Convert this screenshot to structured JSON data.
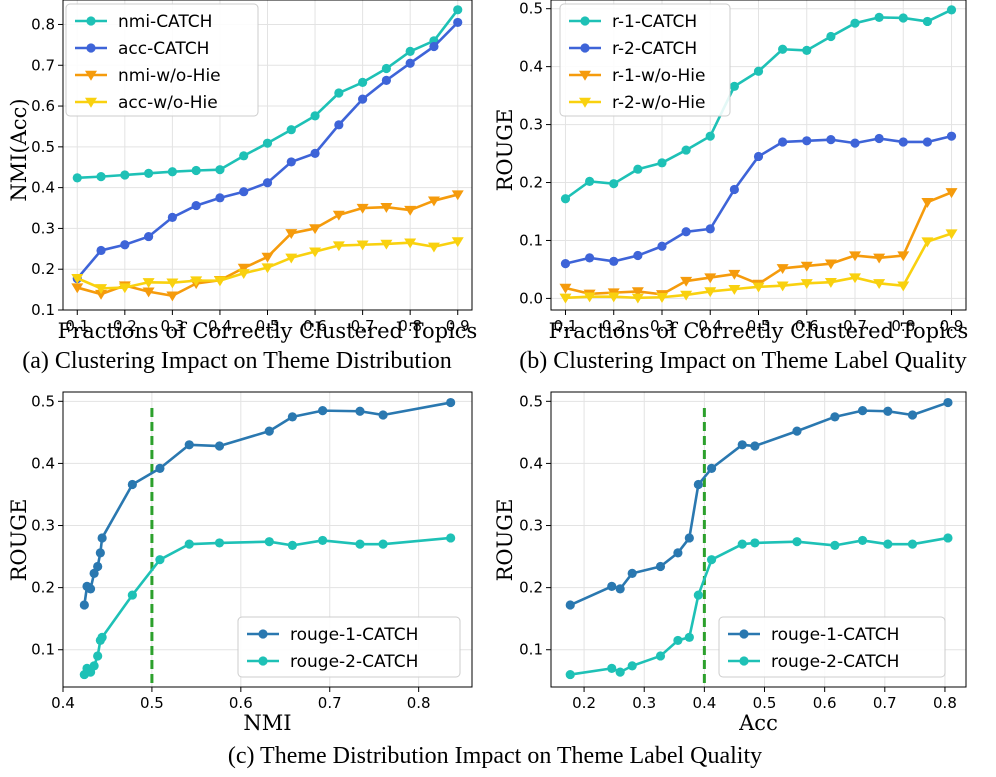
{
  "captions": {
    "a": "(a) Clustering Impact on Theme Distribution",
    "b": "(b) Clustering Impact on Theme Label Quality",
    "c": "(c) Theme Distribution Impact on Theme Label Quality"
  },
  "chart_data": [
    {
      "id": "a",
      "type": "line",
      "xlabel": "Fractions of Correctly Clustered Topics",
      "ylabel": "NMI(Acc)",
      "xlim": [
        0.07,
        0.93
      ],
      "ylim": [
        0.1,
        0.86
      ],
      "xticks": [
        0.1,
        0.2,
        0.3,
        0.4,
        0.5,
        0.6,
        0.7,
        0.8,
        0.9
      ],
      "yticks": [
        0.1,
        0.2,
        0.3,
        0.4,
        0.5,
        0.6,
        0.7,
        0.8
      ],
      "legend": "top-left",
      "x": [
        0.1,
        0.15,
        0.2,
        0.25,
        0.3,
        0.35,
        0.4,
        0.45,
        0.5,
        0.55,
        0.6,
        0.65,
        0.7,
        0.75,
        0.8,
        0.85,
        0.9
      ],
      "series": [
        {
          "name": "nmi-CATCH",
          "color": "#1ec1b6",
          "marker": "circle",
          "values": [
            0.424,
            0.427,
            0.431,
            0.435,
            0.439,
            0.442,
            0.444,
            0.478,
            0.509,
            0.542,
            0.576,
            0.632,
            0.658,
            0.692,
            0.734,
            0.76,
            0.836
          ]
        },
        {
          "name": "acc-CATCH",
          "color": "#3e64d8",
          "marker": "circle",
          "values": [
            0.177,
            0.246,
            0.26,
            0.28,
            0.327,
            0.356,
            0.375,
            0.39,
            0.412,
            0.463,
            0.484,
            0.554,
            0.617,
            0.663,
            0.705,
            0.746,
            0.805
          ]
        },
        {
          "name": "nmi-w/o-Hie",
          "color": "#f59b0c",
          "marker": "triangle",
          "values": [
            0.155,
            0.139,
            0.16,
            0.145,
            0.135,
            0.165,
            0.173,
            0.203,
            0.23,
            0.288,
            0.3,
            0.333,
            0.35,
            0.352,
            0.345,
            0.368,
            0.383
          ]
        },
        {
          "name": "acc-w/o-Hie",
          "color": "#f9d10f",
          "marker": "triangle",
          "values": [
            0.178,
            0.153,
            0.155,
            0.168,
            0.167,
            0.172,
            0.172,
            0.19,
            0.204,
            0.228,
            0.243,
            0.258,
            0.26,
            0.262,
            0.265,
            0.255,
            0.268
          ]
        }
      ]
    },
    {
      "id": "b",
      "type": "line",
      "xlabel": "Fractions of Correctly Clustered Topics",
      "ylabel": "ROUGE",
      "xlim": [
        0.07,
        0.93
      ],
      "ylim": [
        -0.02,
        0.515
      ],
      "xticks": [
        0.1,
        0.2,
        0.3,
        0.4,
        0.5,
        0.6,
        0.7,
        0.8,
        0.9
      ],
      "yticks": [
        0.0,
        0.1,
        0.2,
        0.3,
        0.4,
        0.5
      ],
      "legend": "top-left",
      "x": [
        0.1,
        0.15,
        0.2,
        0.25,
        0.3,
        0.35,
        0.4,
        0.45,
        0.5,
        0.55,
        0.6,
        0.65,
        0.7,
        0.75,
        0.8,
        0.85,
        0.9
      ],
      "series": [
        {
          "name": "r-1-CATCH",
          "color": "#1ec1b6",
          "marker": "circle",
          "values": [
            0.172,
            0.202,
            0.198,
            0.223,
            0.234,
            0.256,
            0.28,
            0.366,
            0.392,
            0.43,
            0.428,
            0.452,
            0.475,
            0.485,
            0.484,
            0.478,
            0.498
          ]
        },
        {
          "name": "r-2-CATCH",
          "color": "#3e64d8",
          "marker": "circle",
          "values": [
            0.06,
            0.07,
            0.064,
            0.074,
            0.09,
            0.115,
            0.12,
            0.188,
            0.245,
            0.27,
            0.272,
            0.274,
            0.268,
            0.276,
            0.27,
            0.27,
            0.28
          ]
        },
        {
          "name": "r-1-w/o-Hie",
          "color": "#f59b0c",
          "marker": "triangle",
          "values": [
            0.018,
            0.008,
            0.01,
            0.012,
            0.007,
            0.03,
            0.036,
            0.042,
            0.025,
            0.052,
            0.056,
            0.06,
            0.074,
            0.07,
            0.074,
            0.166,
            0.183
          ]
        },
        {
          "name": "r-2-w/o-Hie",
          "color": "#f9d10f",
          "marker": "triangle",
          "values": [
            0.001,
            0.003,
            0.003,
            0.001,
            0.002,
            0.006,
            0.012,
            0.016,
            0.02,
            0.022,
            0.026,
            0.028,
            0.036,
            0.026,
            0.022,
            0.098,
            0.112
          ]
        }
      ]
    },
    {
      "id": "c1",
      "type": "line",
      "xlabel": "NMI",
      "ylabel": "ROUGE",
      "xlim": [
        0.4,
        0.86
      ],
      "ylim": [
        0.04,
        0.515
      ],
      "xticks": [
        0.4,
        0.5,
        0.6,
        0.7,
        0.8
      ],
      "yticks": [
        0.1,
        0.2,
        0.3,
        0.4,
        0.5
      ],
      "legend": "bottom-right",
      "vline": 0.5,
      "series": [
        {
          "name": "rouge-1-CATCH",
          "color": "#2a78b0",
          "marker": "circle",
          "x": [
            0.424,
            0.427,
            0.431,
            0.435,
            0.439,
            0.442,
            0.444,
            0.478,
            0.509,
            0.542,
            0.576,
            0.632,
            0.658,
            0.692,
            0.734,
            0.76,
            0.836
          ],
          "values": [
            0.172,
            0.202,
            0.198,
            0.223,
            0.234,
            0.256,
            0.28,
            0.366,
            0.392,
            0.43,
            0.428,
            0.452,
            0.475,
            0.485,
            0.484,
            0.478,
            0.498
          ]
        },
        {
          "name": "rouge-2-CATCH",
          "color": "#1ec1b6",
          "marker": "circle",
          "x": [
            0.424,
            0.427,
            0.431,
            0.435,
            0.439,
            0.442,
            0.444,
            0.478,
            0.509,
            0.542,
            0.576,
            0.632,
            0.658,
            0.692,
            0.734,
            0.76,
            0.836
          ],
          "values": [
            0.06,
            0.07,
            0.064,
            0.074,
            0.09,
            0.115,
            0.12,
            0.188,
            0.245,
            0.27,
            0.272,
            0.274,
            0.268,
            0.276,
            0.27,
            0.27,
            0.28
          ]
        }
      ]
    },
    {
      "id": "c2",
      "type": "line",
      "xlabel": "Acc",
      "ylabel": "ROUGE",
      "xlim": [
        0.145,
        0.835
      ],
      "ylim": [
        0.04,
        0.515
      ],
      "xticks": [
        0.2,
        0.3,
        0.4,
        0.5,
        0.6,
        0.7,
        0.8
      ],
      "yticks": [
        0.1,
        0.2,
        0.3,
        0.4,
        0.5
      ],
      "legend": "bottom-right",
      "vline": 0.4,
      "series": [
        {
          "name": "rouge-1-CATCH",
          "color": "#2a78b0",
          "marker": "circle",
          "x": [
            0.177,
            0.246,
            0.26,
            0.28,
            0.327,
            0.356,
            0.375,
            0.39,
            0.412,
            0.463,
            0.484,
            0.554,
            0.617,
            0.663,
            0.705,
            0.746,
            0.805
          ],
          "values": [
            0.172,
            0.202,
            0.198,
            0.223,
            0.234,
            0.256,
            0.28,
            0.366,
            0.392,
            0.43,
            0.428,
            0.452,
            0.475,
            0.485,
            0.484,
            0.478,
            0.498
          ]
        },
        {
          "name": "rouge-2-CATCH",
          "color": "#1ec1b6",
          "marker": "circle",
          "x": [
            0.177,
            0.246,
            0.26,
            0.28,
            0.327,
            0.356,
            0.375,
            0.39,
            0.412,
            0.463,
            0.484,
            0.554,
            0.617,
            0.663,
            0.705,
            0.746,
            0.805
          ],
          "values": [
            0.06,
            0.07,
            0.064,
            0.074,
            0.09,
            0.115,
            0.12,
            0.188,
            0.245,
            0.27,
            0.272,
            0.274,
            0.268,
            0.276,
            0.27,
            0.27,
            0.28
          ]
        }
      ]
    }
  ]
}
